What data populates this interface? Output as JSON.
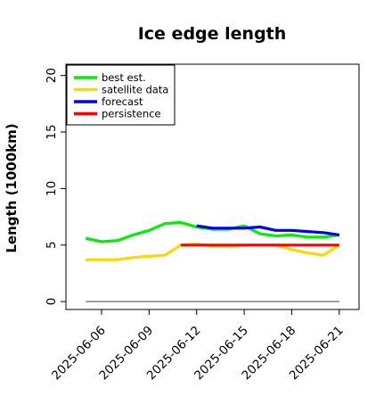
{
  "chart_data": {
    "type": "line",
    "title": "Ice edge length",
    "xlabel": "",
    "ylabel": "Length (1000km)",
    "ylim": [
      -0.7,
      21
    ],
    "yticks": [
      0,
      5,
      10,
      15,
      20
    ],
    "xlim": [
      "2025-06-03T18:00",
      "2025-06-22T06:00"
    ],
    "xticks": [
      "2025-06-06",
      "2025-06-09",
      "2025-06-12",
      "2025-06-15",
      "2025-06-18",
      "2025-06-21"
    ],
    "highlight_tick": "2025-06-12",
    "highlight_color": "#228b22",
    "legend_position": "top-left",
    "grid": false,
    "baseline": {
      "y": 0,
      "color": "#808080"
    },
    "series": [
      {
        "name": "best est.",
        "color": "#00ee00",
        "points": [
          [
            "2025-06-05",
            5.6
          ],
          [
            "2025-06-06",
            5.3
          ],
          [
            "2025-06-07",
            5.4
          ],
          [
            "2025-06-08",
            5.9
          ],
          [
            "2025-06-09",
            6.3
          ],
          [
            "2025-06-10",
            6.9
          ],
          [
            "2025-06-11",
            7.0
          ],
          [
            "2025-06-12",
            6.6
          ],
          [
            "2025-06-13",
            6.4
          ],
          [
            "2025-06-14",
            6.4
          ],
          [
            "2025-06-15",
            6.7
          ],
          [
            "2025-06-16",
            6.0
          ],
          [
            "2025-06-17",
            5.8
          ],
          [
            "2025-06-18",
            5.9
          ],
          [
            "2025-06-19",
            5.7
          ],
          [
            "2025-06-20",
            5.7
          ],
          [
            "2025-06-21",
            5.9
          ]
        ]
      },
      {
        "name": "satellite data",
        "color": "#ffd700",
        "points": [
          [
            "2025-06-05",
            3.7
          ],
          [
            "2025-06-06",
            3.7
          ],
          [
            "2025-06-07",
            3.7
          ],
          [
            "2025-06-08",
            3.9
          ],
          [
            "2025-06-09",
            4.0
          ],
          [
            "2025-06-10",
            4.1
          ],
          [
            "2025-06-11",
            5.0
          ],
          [
            "2025-06-12",
            5.1
          ],
          [
            "2025-06-13",
            4.9
          ],
          [
            "2025-06-14",
            4.9
          ],
          [
            "2025-06-15",
            5.0
          ],
          [
            "2025-06-16",
            5.0
          ],
          [
            "2025-06-17",
            5.0
          ],
          [
            "2025-06-18",
            4.6
          ],
          [
            "2025-06-19",
            4.3
          ],
          [
            "2025-06-20",
            4.1
          ],
          [
            "2025-06-21",
            5.0
          ]
        ]
      },
      {
        "name": "forecast",
        "color": "#0000ee",
        "points": [
          [
            "2025-06-12",
            6.7
          ],
          [
            "2025-06-13",
            6.5
          ],
          [
            "2025-06-14",
            6.5
          ],
          [
            "2025-06-15",
            6.5
          ],
          [
            "2025-06-16",
            6.6
          ],
          [
            "2025-06-17",
            6.3
          ],
          [
            "2025-06-18",
            6.3
          ],
          [
            "2025-06-19",
            6.2
          ],
          [
            "2025-06-20",
            6.1
          ],
          [
            "2025-06-21",
            5.9
          ]
        ]
      },
      {
        "name": "persistence",
        "color": "#ff0000",
        "points": [
          [
            "2025-06-11",
            5.0
          ],
          [
            "2025-06-12",
            5.0
          ],
          [
            "2025-06-13",
            5.0
          ],
          [
            "2025-06-14",
            5.0
          ],
          [
            "2025-06-15",
            5.0
          ],
          [
            "2025-06-16",
            5.0
          ],
          [
            "2025-06-17",
            5.0
          ],
          [
            "2025-06-18",
            5.0
          ],
          [
            "2025-06-19",
            5.0
          ],
          [
            "2025-06-20",
            5.0
          ],
          [
            "2025-06-21",
            5.0
          ]
        ]
      }
    ]
  }
}
